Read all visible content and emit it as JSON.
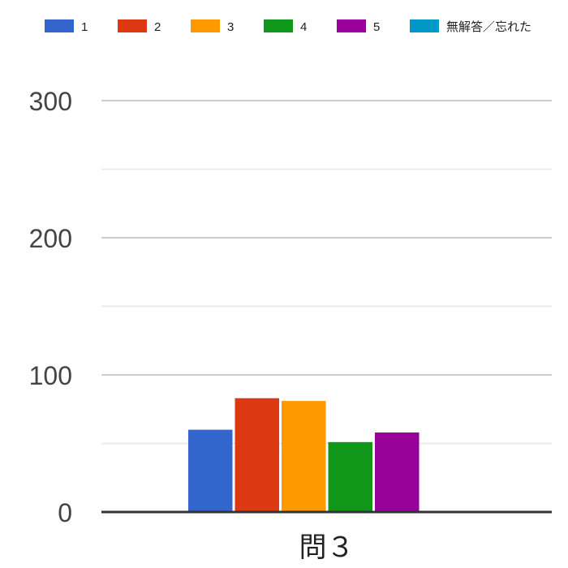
{
  "chart_data": {
    "type": "bar",
    "categories": [
      "問３"
    ],
    "series": [
      {
        "name": "1",
        "color": "#3366cc",
        "values": [
          60
        ]
      },
      {
        "name": "2",
        "color": "#dc3912",
        "values": [
          83
        ]
      },
      {
        "name": "3",
        "color": "#ff9900",
        "values": [
          81
        ]
      },
      {
        "name": "4",
        "color": "#109618",
        "values": [
          51
        ]
      },
      {
        "name": "5",
        "color": "#990099",
        "values": [
          58
        ]
      },
      {
        "name": "無解答／忘れた",
        "color": "#0099c6",
        "values": [
          0
        ]
      }
    ],
    "yticks": [
      "0",
      "100",
      "200",
      "300"
    ],
    "ylim": [
      0,
      300
    ],
    "minor_gridlines": [
      50,
      150,
      250
    ],
    "grid": true,
    "legend": "top"
  }
}
